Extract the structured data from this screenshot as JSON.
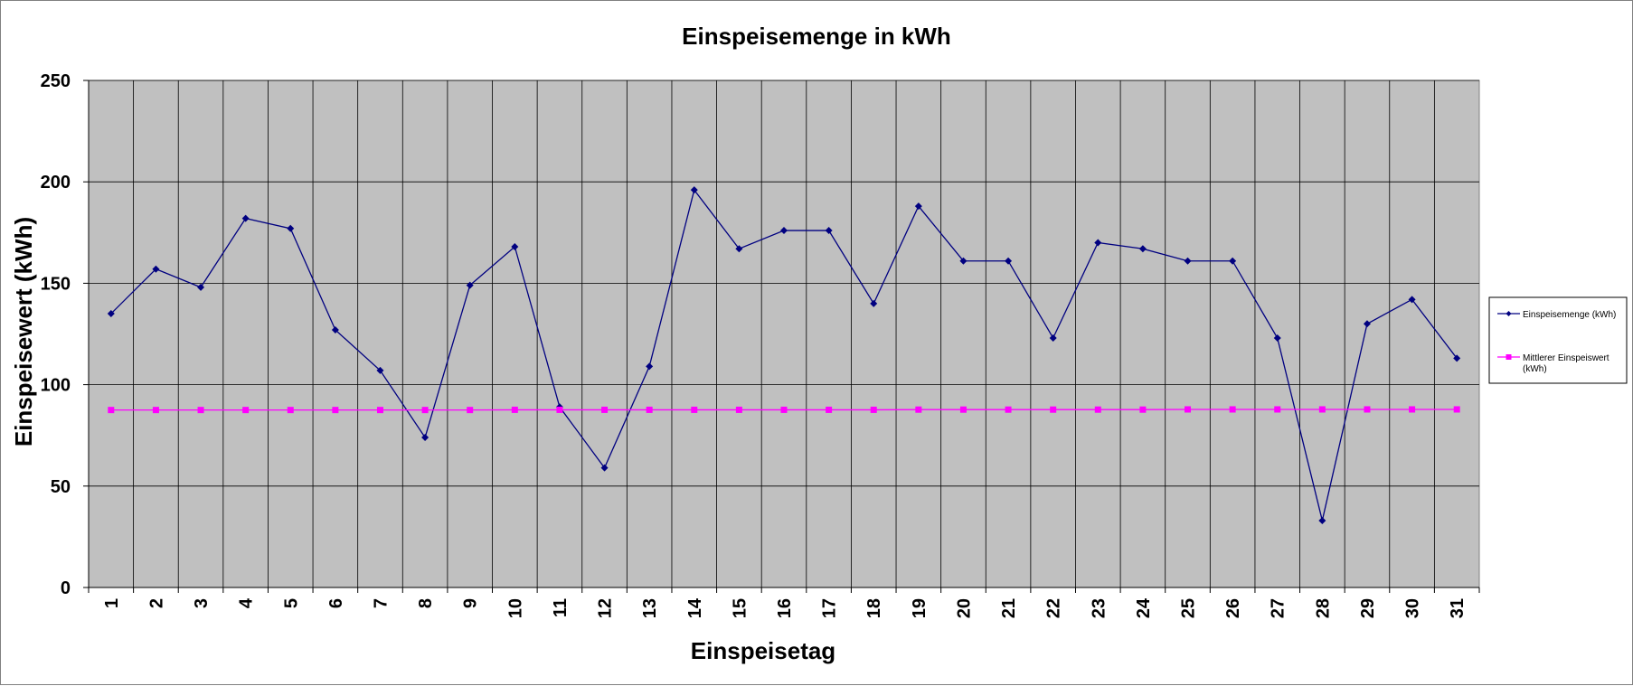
{
  "chart_data": {
    "type": "line",
    "title": "Einspeisemenge in kWh",
    "xlabel": "Einspeisetag",
    "ylabel": "Einspeisewert  (kWh)",
    "x": [
      1,
      2,
      3,
      4,
      5,
      6,
      7,
      8,
      9,
      10,
      11,
      12,
      13,
      14,
      15,
      16,
      17,
      18,
      19,
      20,
      21,
      22,
      23,
      24,
      25,
      26,
      27,
      28,
      29,
      30,
      31
    ],
    "x_tick_labels": [
      "1",
      "2",
      "3",
      "4",
      "5",
      "6",
      "7",
      "8",
      "9",
      "10",
      "11",
      "12",
      "13",
      "14",
      "15",
      "16",
      "17",
      "18",
      "19",
      "20",
      "21",
      "22",
      "23",
      "24",
      "25",
      "26",
      "27",
      "28",
      "29",
      "30",
      "31"
    ],
    "ylim": [
      0,
      250
    ],
    "y_ticks": [
      0,
      50,
      100,
      150,
      200,
      250
    ],
    "y_tick_labels": [
      "0",
      "50",
      "100",
      "150",
      "200",
      "250"
    ],
    "grid": true,
    "legend_position": "right",
    "series": [
      {
        "name": "Einspeisemenge (kWh)",
        "color": "#000080",
        "marker": "diamond",
        "values": [
          135,
          157,
          148,
          182,
          177,
          127,
          107,
          74,
          149,
          168,
          89,
          59,
          109,
          196,
          167,
          176,
          176,
          140,
          188,
          161,
          161,
          123,
          170,
          167,
          161,
          161,
          123,
          33,
          130,
          142,
          113
        ]
      },
      {
        "name_lines": [
          "Mittlerer Einspeiswert",
          "(kWh)"
        ],
        "color": "#ff00ff",
        "marker": "square",
        "values": [
          87.5,
          87.5,
          87.5,
          87.5,
          87.5,
          87.5,
          87.5,
          87.5,
          87.5,
          87.6,
          87.6,
          87.6,
          87.6,
          87.6,
          87.6,
          87.6,
          87.6,
          87.6,
          87.7,
          87.7,
          87.7,
          87.7,
          87.7,
          87.7,
          87.8,
          87.8,
          87.8,
          87.8,
          87.8,
          87.8,
          87.8
        ]
      }
    ],
    "plot_background": "#c0c0c0",
    "gridline_color": "#000000"
  }
}
